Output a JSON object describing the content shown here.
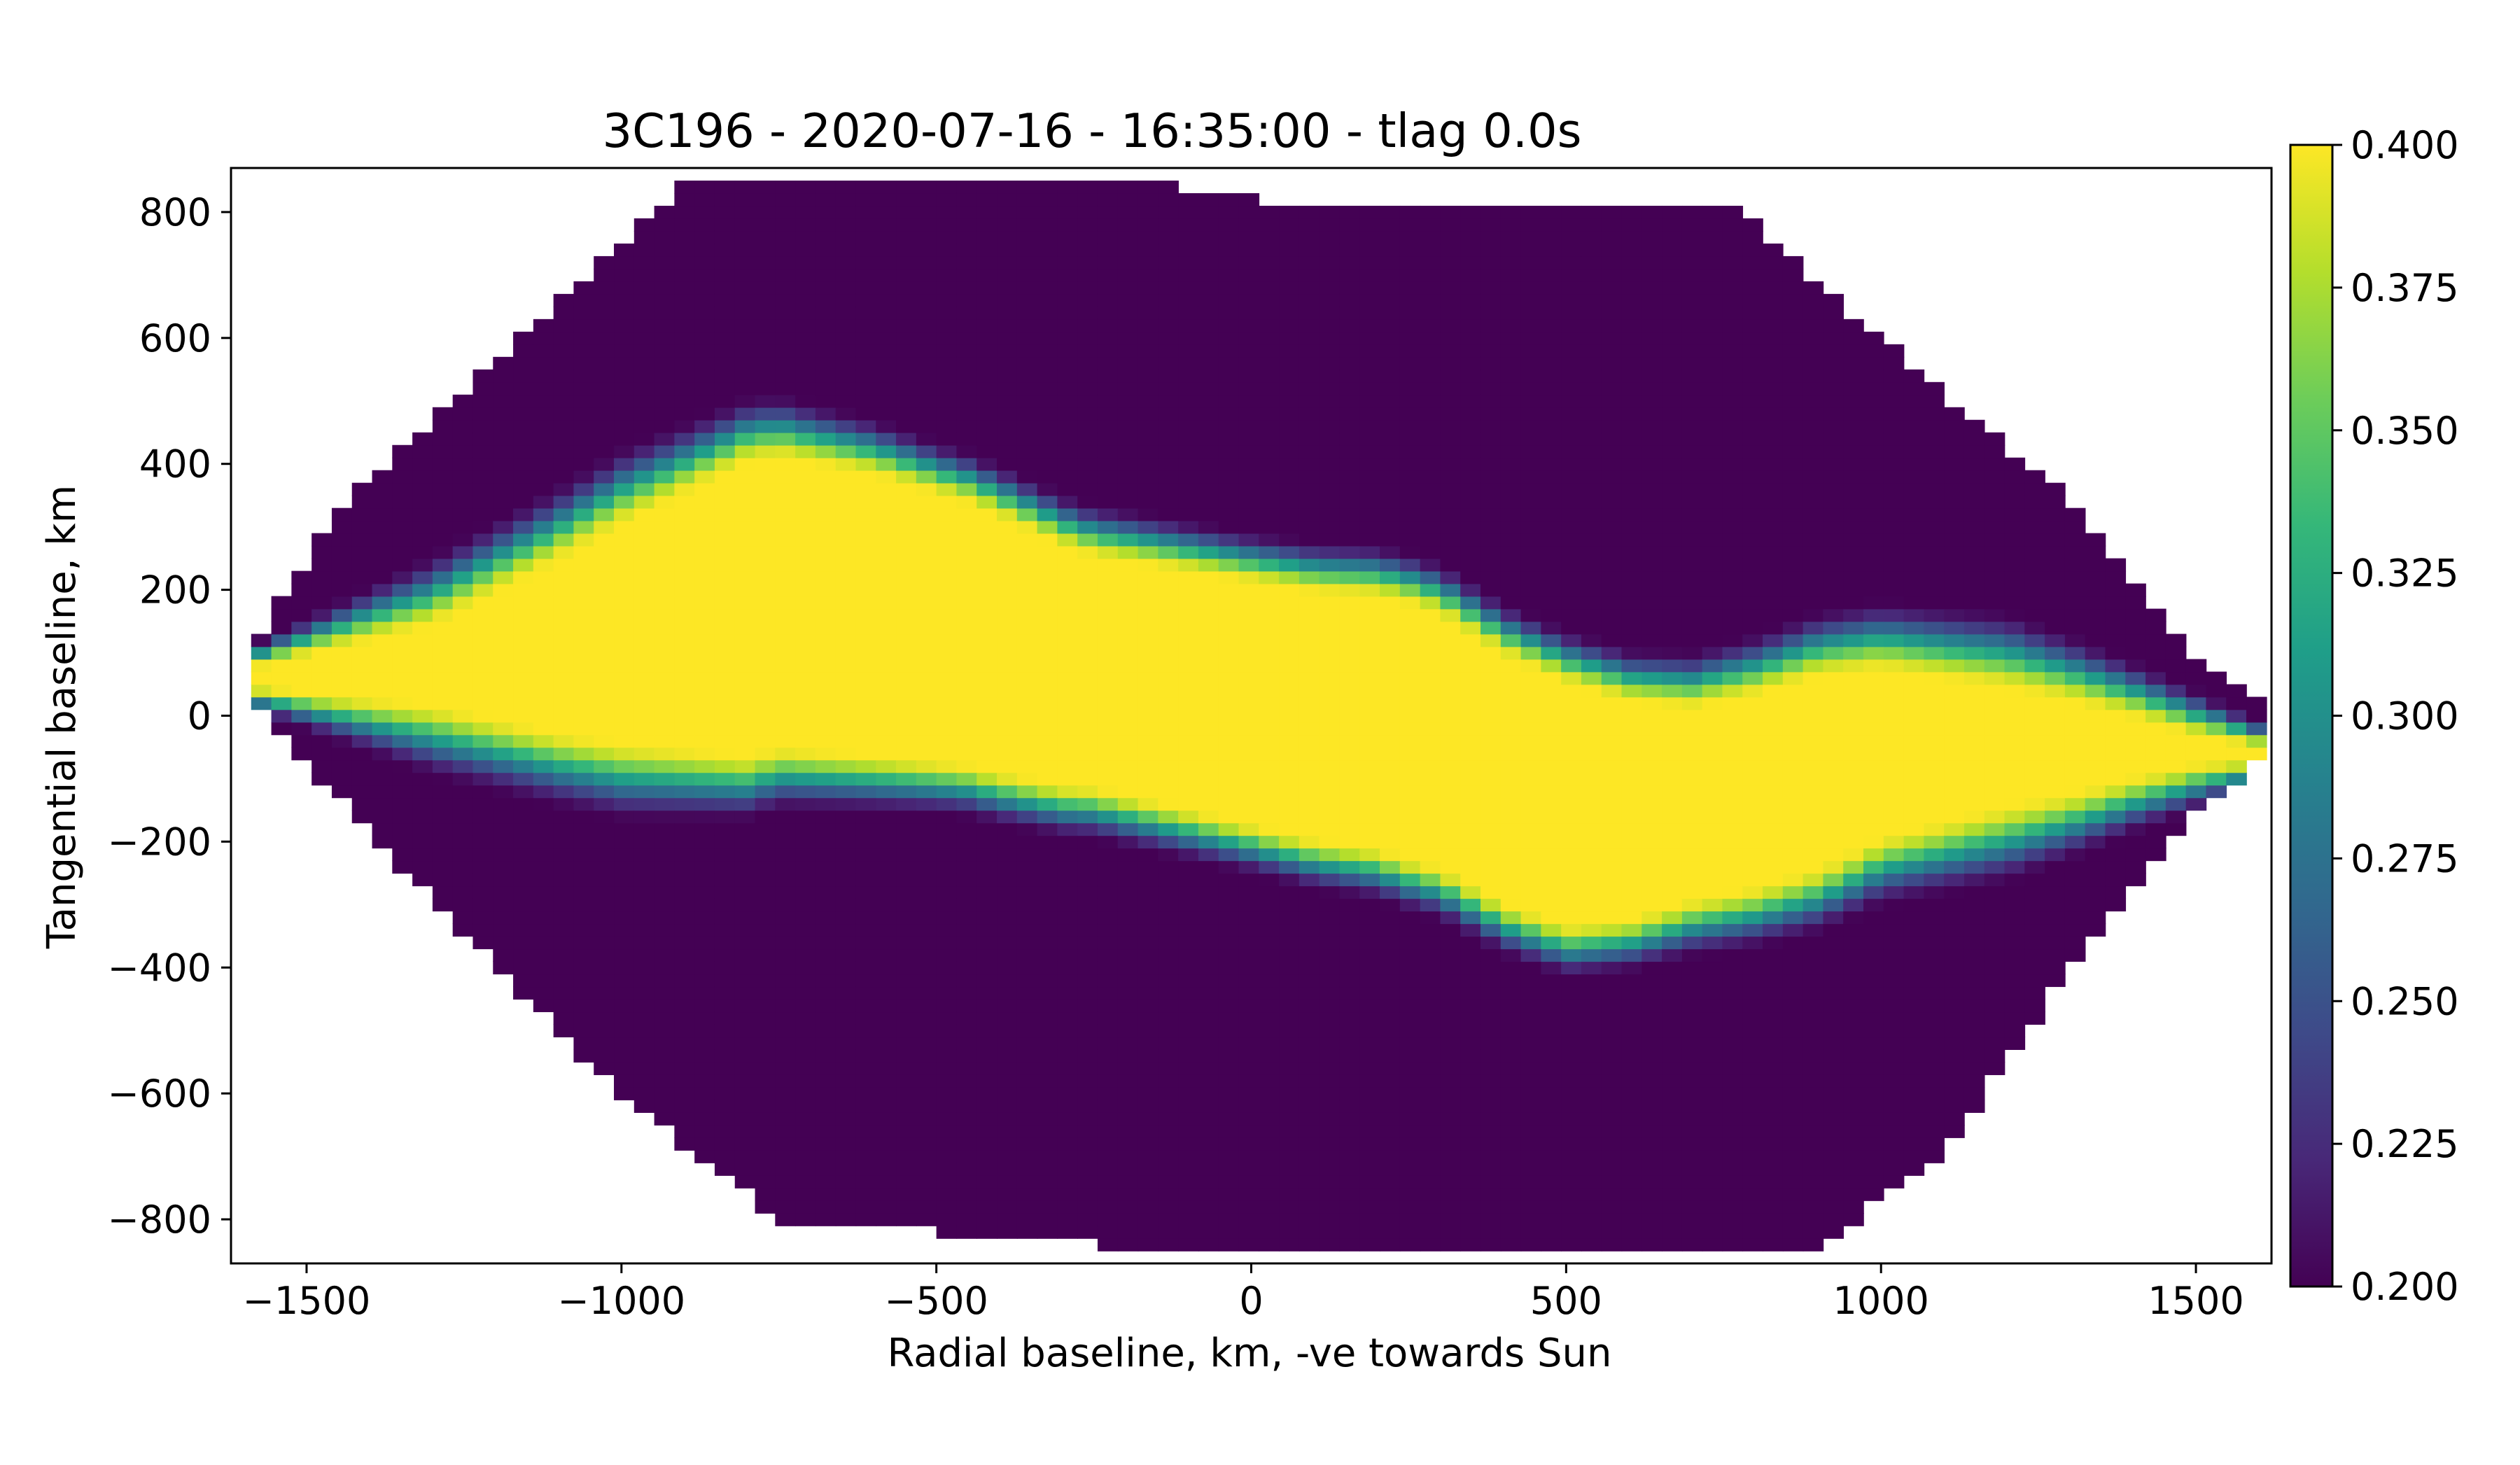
{
  "chart_data": {
    "type": "heatmap",
    "title": "3C196 - 2020-07-16 - 16:35:00 - tlag 0.0s",
    "xlabel": "Radial baseline, km, -ve towards Sun",
    "ylabel": "Tangential baseline, km",
    "xlim": [
      -1620,
      1620
    ],
    "ylim": [
      -870,
      870
    ],
    "x_ticks": [
      -1500,
      -1000,
      -500,
      0,
      500,
      1000,
      1500
    ],
    "x_tick_labels": [
      "−1500",
      "−1000",
      "−500",
      "0",
      "500",
      "1000",
      "1500"
    ],
    "y_ticks": [
      -800,
      -600,
      -400,
      -200,
      0,
      200,
      400,
      600,
      800
    ],
    "y_tick_labels": [
      "−800",
      "−600",
      "−400",
      "−200",
      "0",
      "200",
      "400",
      "600",
      "800"
    ],
    "colorbar": {
      "colormap": "viridis",
      "range": [
        0.2,
        0.4
      ],
      "ticks": [
        0.2,
        0.225,
        0.25,
        0.275,
        0.3,
        0.325,
        0.35,
        0.375,
        0.4
      ],
      "tick_labels": [
        "0.200",
        "0.225",
        "0.250",
        "0.275",
        "0.300",
        "0.325",
        "0.350",
        "0.375",
        "0.400"
      ]
    },
    "grid": false,
    "data_region": {
      "outline": [
        [
          -1600,
          90
        ],
        [
          -1450,
          330
        ],
        [
          -900,
          840
        ],
        [
          -850,
          855
        ],
        [
          -120,
          855
        ],
        [
          -100,
          840
        ],
        [
          0,
          820
        ],
        [
          280,
          820
        ],
        [
          550,
          810
        ],
        [
          780,
          800
        ],
        [
          1000,
          600
        ],
        [
          1300,
          340
        ],
        [
          1500,
          100
        ],
        [
          1620,
          10
        ],
        [
          1620,
          -60
        ],
        [
          1500,
          -160
        ],
        [
          1300,
          -400
        ],
        [
          1100,
          -700
        ],
        [
          900,
          -840
        ],
        [
          70,
          -850
        ],
        [
          -250,
          -840
        ],
        [
          -750,
          -800
        ],
        [
          -1000,
          -600
        ],
        [
          -1200,
          -400
        ],
        [
          -1500,
          -80
        ],
        [
          -1600,
          40
        ]
      ],
      "fill_value": 0.2
    },
    "band": {
      "center_line": [
        [
          -1600,
          60
        ],
        [
          -1300,
          80
        ],
        [
          -1100,
          110
        ],
        [
          -900,
          150
        ],
        [
          -750,
          180
        ],
        [
          -600,
          160
        ],
        [
          -450,
          130
        ],
        [
          -300,
          80
        ],
        [
          -100,
          40
        ],
        [
          0,
          20
        ],
        [
          100,
          0
        ],
        [
          200,
          -10
        ],
        [
          300,
          -40
        ],
        [
          400,
          -100
        ],
        [
          500,
          -140
        ],
        [
          600,
          -150
        ],
        [
          700,
          -140
        ],
        [
          800,
          -120
        ],
        [
          1000,
          -60
        ],
        [
          1200,
          -50
        ],
        [
          1400,
          -50
        ],
        [
          1620,
          -60
        ]
      ],
      "half_width_core": [
        [
          -1600,
          10
        ],
        [
          -1300,
          60
        ],
        [
          -1000,
          170
        ],
        [
          -800,
          230
        ],
        [
          -600,
          220
        ],
        [
          -400,
          200
        ],
        [
          -250,
          180
        ],
        [
          0,
          190
        ],
        [
          250,
          200
        ],
        [
          500,
          190
        ],
        [
          700,
          150
        ],
        [
          900,
          150
        ],
        [
          1100,
          110
        ],
        [
          1300,
          70
        ],
        [
          1500,
          20
        ],
        [
          1620,
          5
        ]
      ],
      "edge_width": [
        [
          -1600,
          40
        ],
        [
          -1300,
          120
        ],
        [
          -1000,
          130
        ],
        [
          -800,
          110
        ],
        [
          -500,
          90
        ],
        [
          -200,
          90
        ],
        [
          0,
          85
        ],
        [
          300,
          90
        ],
        [
          600,
          90
        ],
        [
          900,
          110
        ],
        [
          1200,
          130
        ],
        [
          1500,
          80
        ],
        [
          1620,
          40
        ]
      ],
      "core_value": 0.4,
      "background_value": 0.2
    }
  }
}
